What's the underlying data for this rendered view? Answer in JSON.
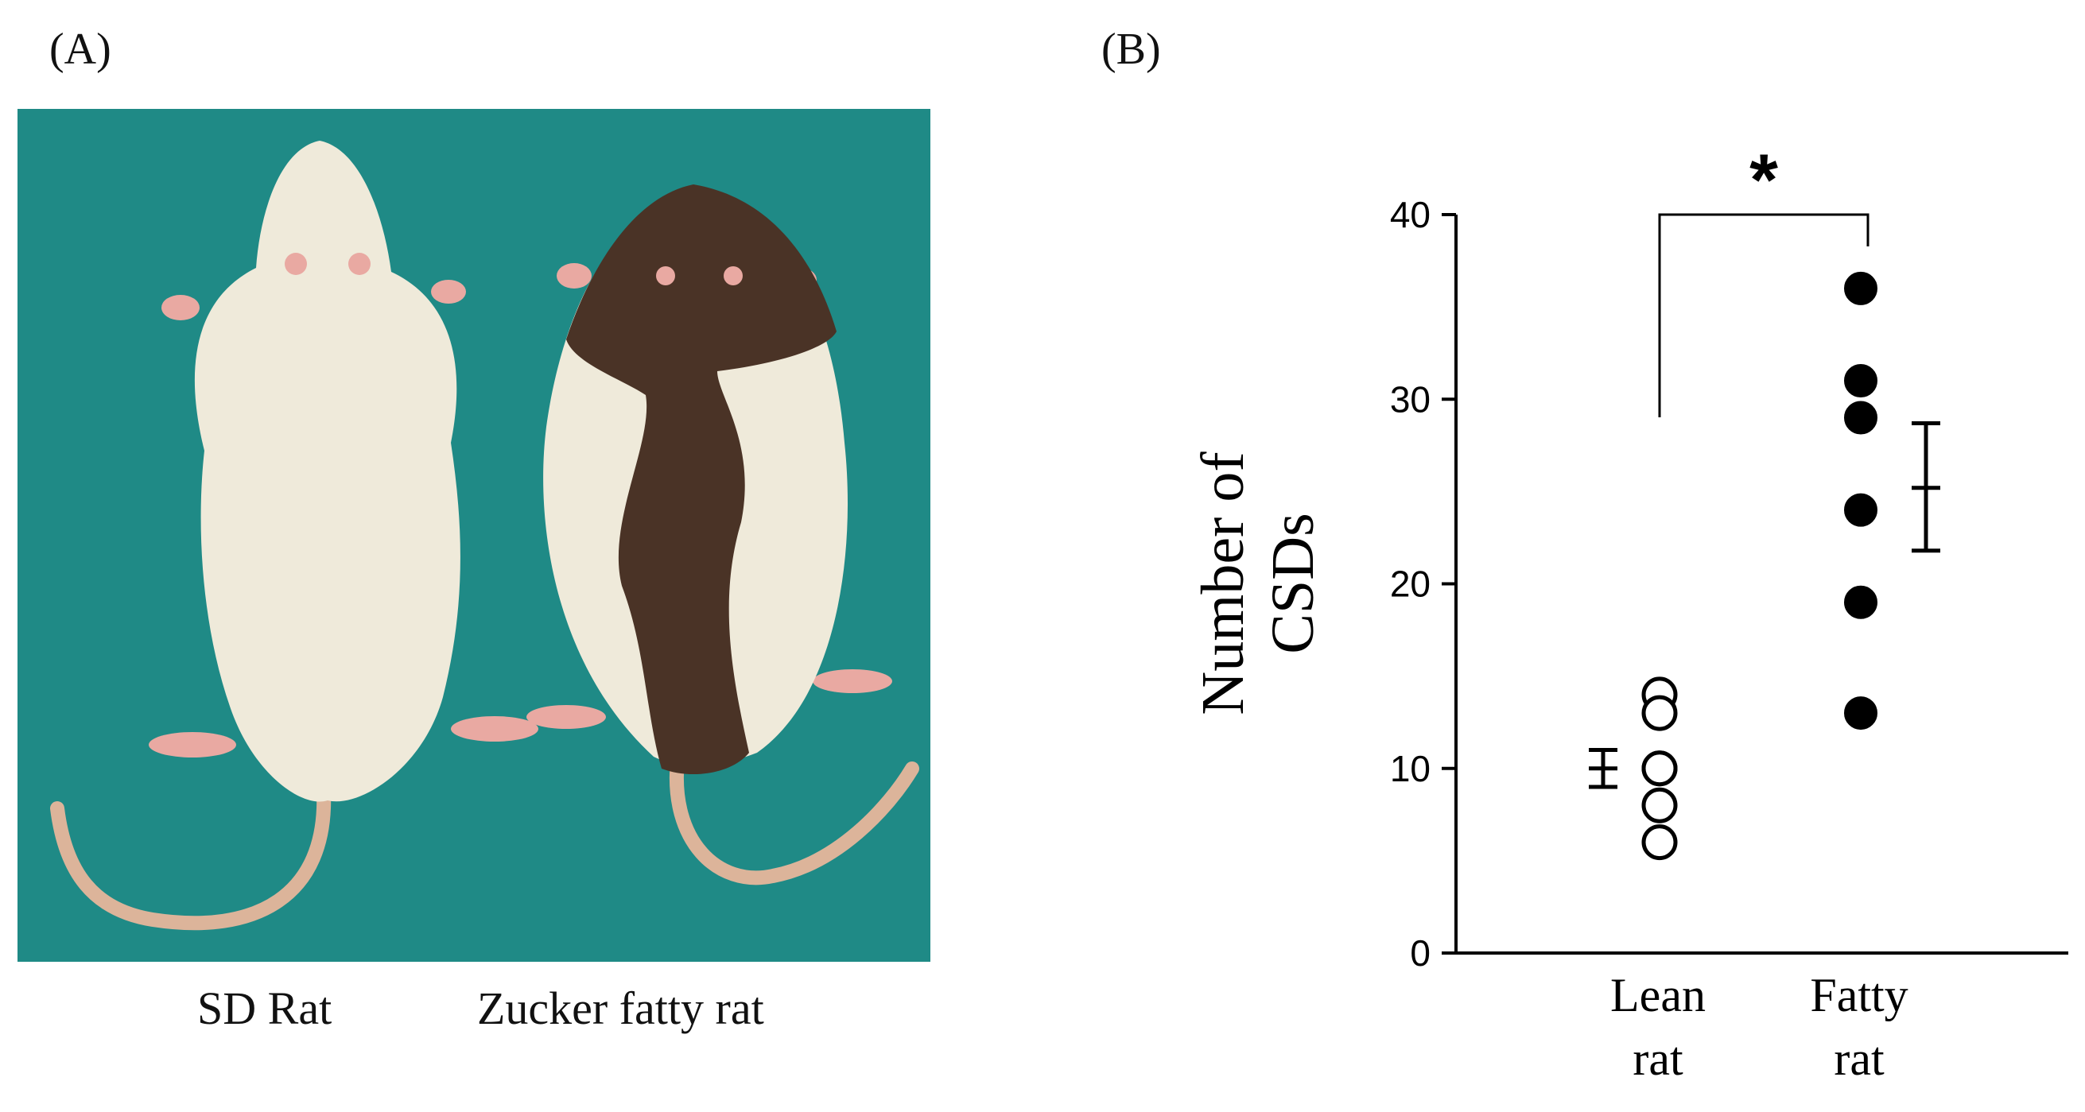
{
  "panel_a": {
    "label": "(A)",
    "captions": [
      "SD Rat",
      "Zucker fatty rat"
    ],
    "colors": {
      "background": "#1f8a86",
      "white_fur": "#efeada",
      "brown_fur": "#4a3326",
      "pink": "#e9a9a2",
      "tail": "#dcb49a"
    }
  },
  "panel_b": {
    "label": "(B)"
  },
  "chart_data": {
    "type": "scatter",
    "ylabel": "Number of CSDs",
    "ylim": [
      0,
      40
    ],
    "yticks": [
      "0",
      "10",
      "20",
      "30",
      "40"
    ],
    "categories": [
      "Lean rat",
      "Fatty rat"
    ],
    "category_lines": [
      [
        "Lean",
        "rat"
      ],
      [
        "Fatty",
        "rat"
      ]
    ],
    "series": [
      {
        "category": "Lean rat",
        "marker": "open-circle",
        "values": [
          14,
          13,
          10,
          10,
          8,
          6
        ]
      },
      {
        "category": "Fatty rat",
        "marker": "filled-circle",
        "values": [
          36,
          31,
          29,
          24,
          19,
          13
        ]
      }
    ],
    "error_bars": [
      {
        "category": "Lean rat",
        "mean": 10,
        "low": 9,
        "high": 11
      },
      {
        "category": "Fatty rat",
        "mean": 25.2,
        "low": 21.8,
        "high": 28.7
      }
    ],
    "significance": {
      "symbol": "*",
      "between": [
        "Lean rat",
        "Fatty rat"
      ]
    }
  }
}
